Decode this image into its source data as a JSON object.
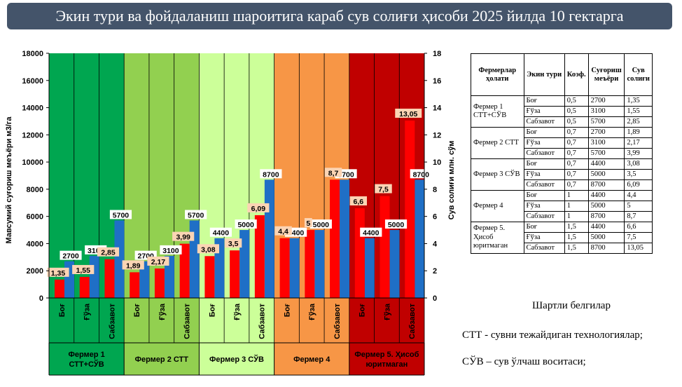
{
  "title": "Экин тури ва фойдаланиш шароитига караб сув солиғи ҳисоби 2025 йилда 10 гектарга",
  "chart_data": {
    "type": "bar",
    "categories": [
      "Боғ",
      "Ғўза",
      "Сабзавот",
      "Боғ",
      "Ғўза",
      "Сабзавот",
      "Боғ",
      "Ғўза",
      "Сабзавот",
      "Боғ",
      "Ғўза",
      "Сабзавот",
      "Боғ",
      "Ғўза",
      "Сабзавот"
    ],
    "groups": [
      {
        "label": "Фермер 1\nСТТ+СЎВ",
        "color": "#00a650"
      },
      {
        "label": "Фермер 2 СТТ",
        "color": "#92d050"
      },
      {
        "label": "Фермер 3 СЎВ",
        "color": "#ccff99"
      },
      {
        "label": "Фермер 4",
        "color": "#f79646"
      },
      {
        "label": "Фермер 5. Ҳисоб\nюритмаган",
        "color": "#c00000"
      }
    ],
    "series": [
      {
        "axis": "right",
        "color": "#ff0000",
        "values": [
          1.35,
          1.55,
          2.85,
          1.89,
          2.17,
          3.99,
          3.08,
          3.5,
          6.09,
          4.4,
          5,
          8.7,
          6.6,
          7.5,
          13.05
        ],
        "labels": [
          "1,35",
          "1,55",
          "2,85",
          "1,89",
          "2,17",
          "3,99",
          "3,08",
          "3,5",
          "6,09",
          "4,4",
          "5",
          "8,7",
          "6,6",
          "7,5",
          "13,05"
        ]
      },
      {
        "axis": "left",
        "color": "#1f6fc6",
        "values": [
          2700,
          3100,
          5700,
          2700,
          3100,
          5700,
          4400,
          5000,
          8700,
          4400,
          5000,
          8700,
          4400,
          5000,
          8700
        ],
        "labels": [
          "2700",
          "3100",
          "5700",
          "2700",
          "3100",
          "5700",
          "4400",
          "5000",
          "8700",
          "4400",
          "5000",
          "8700",
          "4400",
          "5000",
          "8700"
        ]
      }
    ],
    "ylabel": "Мавсумий суғориш меъёри м3/га",
    "y2label": "Сув солиғи млн. сўм",
    "ylim": [
      0,
      18000
    ],
    "y2lim": [
      0,
      18
    ],
    "yticks": [
      "0",
      "2000",
      "4000",
      "6000",
      "8000",
      "10000",
      "12000",
      "14000",
      "16000",
      "18000"
    ],
    "y2ticks": [
      "0",
      "2",
      "4",
      "6",
      "8",
      "10",
      "12",
      "14",
      "16",
      "18"
    ],
    "grid": true,
    "bar_label_red_bg": "#fbd4b4",
    "bar_label_blue_bg": "#ffffff"
  },
  "table": {
    "headers": [
      "Фермерлар ҳолати",
      "Экин тури",
      "Коэф.",
      "Суғориш меъёри",
      "Сув солиғи"
    ],
    "groups": [
      {
        "name": "Фермер 1 СТТ+СЎВ",
        "rows": [
          [
            "Боғ",
            "0,5",
            "2700",
            "1,35"
          ],
          [
            "Ғўза",
            "0,5",
            "3100",
            "1,55"
          ],
          [
            "Сабзавот",
            "0,5",
            "5700",
            "2,85"
          ]
        ]
      },
      {
        "name": "Фермер 2 СТТ",
        "rows": [
          [
            "Боғ",
            "0,7",
            "2700",
            "1,89"
          ],
          [
            "Ғўза",
            "0,7",
            "3100",
            "2,17"
          ],
          [
            "Сабзавот",
            "0,7",
            "5700",
            "3,99"
          ]
        ]
      },
      {
        "name": "Фермер 3 СЎВ",
        "rows": [
          [
            "Боғ",
            "0,7",
            "4400",
            "3,08"
          ],
          [
            "Ғўза",
            "0,7",
            "5000",
            "3,5"
          ],
          [
            "Сабзавот",
            "0,7",
            "8700",
            "6,09"
          ]
        ]
      },
      {
        "name": "Фермер 4",
        "rows": [
          [
            "Боғ",
            "1",
            "4400",
            "4,4"
          ],
          [
            "Ғўза",
            "1",
            "5000",
            "5"
          ],
          [
            "Сабзавот",
            "1",
            "8700",
            "8,7"
          ]
        ]
      },
      {
        "name": "Фермер 5. Ҳисоб юритмаган",
        "rows": [
          [
            "Боғ",
            "1,5",
            "4400",
            "6,6"
          ],
          [
            "Ғўза",
            "1,5",
            "5000",
            "7,5"
          ],
          [
            "Сабзавот",
            "1,5",
            "8700",
            "13,05"
          ]
        ]
      }
    ]
  },
  "legend": {
    "title": "Шартли белгилар",
    "items": [
      "СТТ - сувни тежайдиган технологиялар;",
      "СЎВ – сув ўлчаш воситаси;"
    ]
  }
}
